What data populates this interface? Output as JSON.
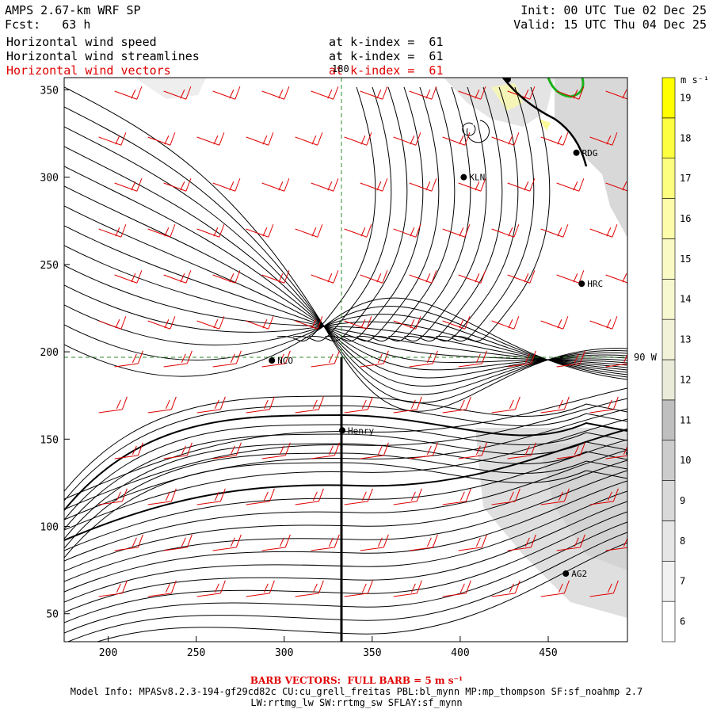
{
  "header": {
    "title": "AMPS 2.67-km WRF SP",
    "forecast": "Fcst:   63 h",
    "init": "Init: 00 UTC Tue 02 Dec 25",
    "valid": "Valid: 15 UTC Thu 04 Dec 25",
    "fields": [
      {
        "name": "Horizontal wind speed",
        "level": "at k-index =  61"
      },
      {
        "name": "Horizontal wind streamlines",
        "level": "at k-index =  61"
      },
      {
        "name": "Horizontal wind vectors",
        "level": "at k-index =  61"
      }
    ]
  },
  "map": {
    "x_ticks": [
      "200",
      "250",
      "300",
      "350",
      "400",
      "450"
    ],
    "y_ticks": [
      "350",
      "300",
      "250",
      "200",
      "150",
      "100",
      "50"
    ],
    "meridian_label": "180",
    "parallel_label": "90 W",
    "stations": [
      {
        "name": "NCO",
        "x": 293,
        "y": 195
      },
      {
        "name": "Henry",
        "x": 333,
        "y": 155
      },
      {
        "name": "KLN",
        "x": 402,
        "y": 300
      },
      {
        "name": "RDG",
        "x": 466,
        "y": 314
      },
      {
        "name": "HRC",
        "x": 469,
        "y": 239
      },
      {
        "name": "AG2",
        "x": 460,
        "y": 73
      },
      {
        "name": "",
        "x": 427,
        "y": 356
      },
      {
        "name": "",
        "x": 496,
        "y": 142
      }
    ]
  },
  "colorbar": {
    "unit": "m s⁻¹",
    "labels": [
      "6",
      "7",
      "8",
      "9",
      "10",
      "11",
      "12",
      "13",
      "14",
      "15",
      "16",
      "17",
      "18",
      "19"
    ],
    "colors": [
      "#ffffff",
      "#f2f2f2",
      "#e6e6e6",
      "#d9d9d9",
      "#cccccc",
      "#bfbfbf",
      "#ebebd9",
      "#f2f2d9",
      "#f7f7d0",
      "#fafac4",
      "#fcfcaa",
      "#fdfd80",
      "#fefe40",
      "#ffff00"
    ]
  },
  "footer": {
    "barb_note": "BARB VECTORS:  FULL BARB = 5 m s⁻¹",
    "model_info": "Model Info: MPASv8.2.3-194-gf29cd82c CU:cu_grell_freitas PBL:bl_mynn MP:mp_thompson SF:sf_noahmp 2.7",
    "model_info2": "LW:rrtmg_lw SW:rrtmg_sw SFLAY:sf_mynn"
  }
}
